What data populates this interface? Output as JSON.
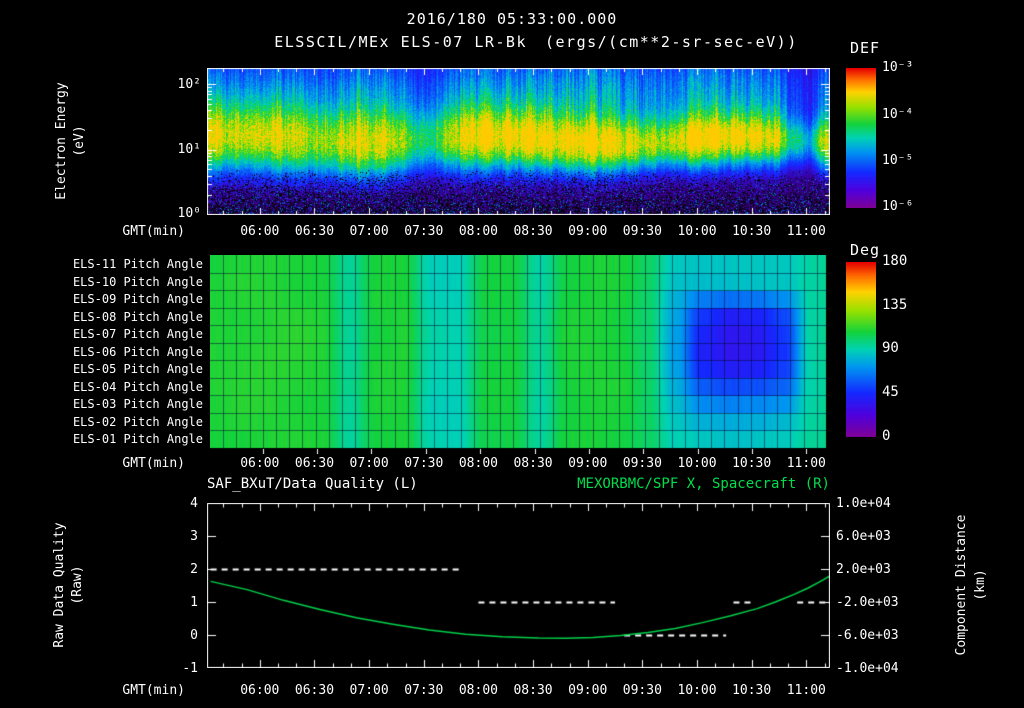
{
  "header": {
    "datetime": "2016/180 05:33:00.000",
    "title": "ELSSCIL/MEx ELS-07 LR-Bk",
    "units": "(ergs/(cm**2-sr-sec-eV))"
  },
  "time_axis": {
    "label": "GMT(min)",
    "ticks": [
      {
        "label": "06:00",
        "min_after_start": 27
      },
      {
        "label": "06:30",
        "min_after_start": 57
      },
      {
        "label": "07:00",
        "min_after_start": 87
      },
      {
        "label": "07:30",
        "min_after_start": 117
      },
      {
        "label": "08:00",
        "min_after_start": 147
      },
      {
        "label": "08:30",
        "min_after_start": 177
      },
      {
        "label": "09:00",
        "min_after_start": 207
      },
      {
        "label": "09:30",
        "min_after_start": 237
      },
      {
        "label": "10:00",
        "min_after_start": 267
      },
      {
        "label": "10:30",
        "min_after_start": 297
      },
      {
        "label": "11:00",
        "min_after_start": 327
      }
    ]
  },
  "spectrogram": {
    "ylabel_lines": [
      "Electron Energy",
      "(eV)"
    ],
    "y_tick_labels": [
      "10²",
      "10¹",
      "10⁰"
    ],
    "colorbar_title": "DEF",
    "colorbar_tick_labels": [
      "10⁻³",
      "10⁻⁴",
      "10⁻⁵",
      "10⁻⁶"
    ]
  },
  "pitch": {
    "row_labels": [
      "ELS-11 Pitch Angle",
      "ELS-10 Pitch Angle",
      "ELS-09 Pitch Angle",
      "ELS-08 Pitch Angle",
      "ELS-07 Pitch Angle",
      "ELS-06 Pitch Angle",
      "ELS-05 Pitch Angle",
      "ELS-04 Pitch Angle",
      "ELS-03 Pitch Angle",
      "ELS-02 Pitch Angle",
      "ELS-01 Pitch Angle"
    ],
    "colorbar_title": "Deg",
    "colorbar_tick_labels": [
      "180",
      "135",
      "90",
      "45",
      "0"
    ]
  },
  "lineplot": {
    "title_left": "SAF_BXuT/Data Quality (L)",
    "title_right": "MEXORBMC/SPF X, Spacecraft (R)",
    "ylabel_left_lines": [
      "Raw Data Quality",
      "(Raw)"
    ],
    "ylabel_right_lines": [
      "Component Distance",
      "(km)"
    ],
    "left_tick_labels": [
      "4",
      "3",
      "2",
      "1",
      "0",
      "-1"
    ],
    "right_tick_labels": [
      "1.0e+04",
      "6.0e+03",
      "2.0e+03",
      "-2.0e+03",
      "-6.0e+03",
      "-1.0e+04"
    ]
  },
  "chart_data": [
    {
      "type": "heatmap",
      "id": "electron-energy-spectrogram",
      "title": "ELSSCIL/MEx ELS-07 LR-Bk",
      "units": "ergs/(cm**2-sr-sec-eV)",
      "x_start_time": "05:33:00",
      "x_span_minutes": 342,
      "y_axis": {
        "label": "Electron Energy (eV)",
        "scale": "log",
        "min_eV": 1,
        "max_eV": 178
      },
      "color_axis": {
        "label": "DEF",
        "scale": "log",
        "min": 1e-06,
        "max": 0.001
      },
      "profile": {
        "core_center_log10eV": 1.12,
        "core_sigma": 0.3,
        "halo_center_log10eV": 1.75,
        "halo_sigma": 0.6,
        "noise_floor_below_log10eV": 0.7
      },
      "time_brightness_step_min": 10,
      "time_brightness": [
        0.85,
        0.8,
        0.78,
        0.82,
        0.86,
        0.8,
        0.72,
        0.78,
        0.88,
        0.9,
        0.82,
        0.62,
        0.55,
        0.72,
        0.9,
        0.96,
        0.9,
        0.96,
        1.0,
        0.92,
        0.95,
        1.0,
        0.95,
        0.9,
        0.8,
        0.76,
        0.9,
        1.0,
        0.96,
        0.95,
        0.9,
        0.88,
        0.52,
        0.42,
        0.95
      ]
    },
    {
      "type": "heatmap",
      "id": "pitch-angle-panel",
      "rows": [
        "ELS-11",
        "ELS-10",
        "ELS-09",
        "ELS-08",
        "ELS-07",
        "ELS-06",
        "ELS-05",
        "ELS-04",
        "ELS-03",
        "ELS-02",
        "ELS-01"
      ],
      "color_axis": {
        "label": "Deg",
        "min": 0,
        "max": 180
      },
      "column_step_min": 15,
      "column_minutes_after_start": [
        0,
        15,
        30,
        45,
        60,
        75,
        90,
        105,
        120,
        135,
        150,
        165,
        180,
        195,
        210,
        225,
        240,
        255,
        270,
        285,
        300,
        315,
        330,
        345
      ],
      "values_deg": [
        [
          108,
          109,
          110,
          110,
          109,
          94,
          108,
          109,
          90,
          89,
          106,
          107,
          93,
          108,
          109,
          108,
          102,
          88,
          86,
          85,
          86,
          87,
          94,
          97
        ],
        [
          109,
          110,
          110,
          110,
          109,
          94,
          108,
          109,
          90,
          89,
          106,
          107,
          93,
          108,
          109,
          108,
          102,
          86,
          84,
          83,
          84,
          86,
          94,
          97
        ],
        [
          109,
          110,
          111,
          110,
          109,
          94,
          109,
          109,
          90,
          89,
          107,
          107,
          93,
          108,
          109,
          108,
          101,
          80,
          66,
          62,
          64,
          70,
          93,
          97
        ],
        [
          110,
          110,
          111,
          111,
          110,
          95,
          109,
          110,
          91,
          90,
          107,
          108,
          94,
          109,
          110,
          108,
          101,
          76,
          48,
          40,
          42,
          52,
          92,
          97
        ],
        [
          110,
          111,
          111,
          111,
          110,
          95,
          109,
          110,
          91,
          90,
          107,
          108,
          94,
          109,
          110,
          109,
          101,
          74,
          42,
          36,
          38,
          48,
          92,
          97
        ],
        [
          110,
          111,
          112,
          111,
          110,
          95,
          109,
          110,
          91,
          90,
          107,
          108,
          94,
          109,
          110,
          109,
          101,
          74,
          40,
          35,
          37,
          47,
          92,
          97
        ],
        [
          110,
          111,
          112,
          111,
          110,
          95,
          110,
          110,
          91,
          90,
          107,
          108,
          94,
          109,
          110,
          109,
          101,
          76,
          45,
          39,
          41,
          50,
          92,
          97
        ],
        [
          110,
          110,
          111,
          111,
          110,
          95,
          109,
          110,
          91,
          90,
          107,
          108,
          94,
          109,
          110,
          109,
          102,
          80,
          58,
          52,
          54,
          60,
          93,
          97
        ],
        [
          109,
          110,
          111,
          110,
          109,
          94,
          109,
          109,
          90,
          89,
          107,
          107,
          93,
          108,
          109,
          108,
          102,
          84,
          70,
          66,
          68,
          72,
          94,
          97
        ],
        [
          109,
          110,
          110,
          110,
          109,
          94,
          108,
          109,
          90,
          89,
          106,
          107,
          93,
          108,
          109,
          108,
          102,
          87,
          80,
          78,
          79,
          82,
          94,
          97
        ],
        [
          108,
          109,
          110,
          110,
          109,
          94,
          108,
          109,
          90,
          89,
          106,
          107,
          93,
          108,
          109,
          108,
          102,
          89,
          86,
          85,
          86,
          87,
          94,
          97
        ]
      ]
    },
    {
      "type": "line",
      "id": "quality-distance-panel",
      "left_axis": {
        "label": "Raw Data Quality (Raw)",
        "min": -1,
        "max": 4
      },
      "right_axis": {
        "label": "Component Distance (km)",
        "min": -10000,
        "max": 10000
      },
      "x_unit": "minutes after 05:33:00",
      "series": [
        {
          "name": "SAF_BXuT/Data Quality (L)",
          "axis": "left",
          "color": "#ffffff",
          "style": "dashed",
          "segments": [
            {
              "start_min": 0,
              "end_min": 137,
              "value": 2
            },
            {
              "start_min": 147,
              "end_min": 222,
              "value": 1
            },
            {
              "start_min": 227,
              "end_min": 283,
              "value": 0
            },
            {
              "start_min": 287,
              "end_min": 299,
              "value": 1
            },
            {
              "start_min": 322,
              "end_min": 340,
              "value": 1
            }
          ]
        },
        {
          "name": "MEXORBMC/SPF X, Spacecraft (R)",
          "axis": "right",
          "color": "#00d24a",
          "style": "solid",
          "points_min_km": [
            [
              0,
              500
            ],
            [
              20,
              -500
            ],
            [
              40,
              -1800
            ],
            [
              60,
              -2900
            ],
            [
              80,
              -3900
            ],
            [
              100,
              -4700
            ],
            [
              120,
              -5400
            ],
            [
              140,
              -5900
            ],
            [
              160,
              -6200
            ],
            [
              180,
              -6350
            ],
            [
              195,
              -6380
            ],
            [
              210,
              -6300
            ],
            [
              225,
              -6050
            ],
            [
              240,
              -5700
            ],
            [
              255,
              -5200
            ],
            [
              270,
              -4500
            ],
            [
              285,
              -3700
            ],
            [
              300,
              -2800
            ],
            [
              310,
              -2000
            ],
            [
              320,
              -1100
            ],
            [
              328,
              -300
            ],
            [
              334,
              400
            ],
            [
              340,
              1150
            ]
          ]
        }
      ]
    }
  ]
}
